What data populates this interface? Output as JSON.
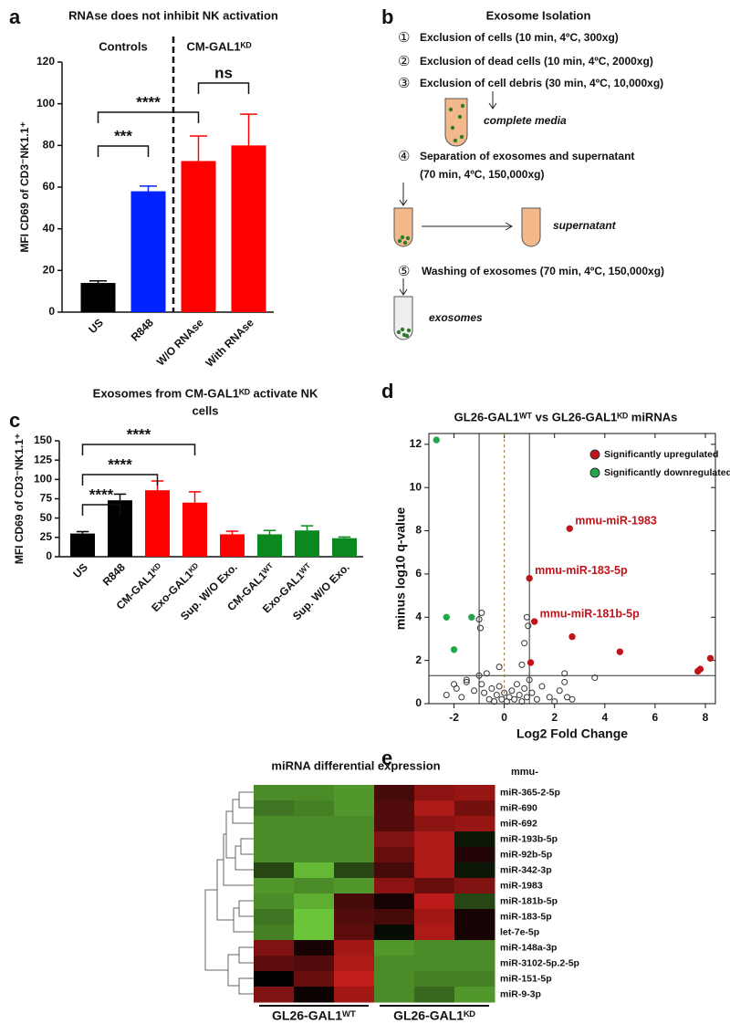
{
  "panels": [
    "a",
    "b",
    "c",
    "d",
    "e"
  ],
  "chart_data": [
    {
      "type": "bar",
      "title": "RNAse does not inhibit NK activation",
      "ylabel": "MFI CD69 of CD3⁻NK1.1⁺",
      "categories": [
        "US",
        "R848",
        "W/O RNAse",
        "With RNAse"
      ],
      "values": [
        14,
        58,
        72.5,
        80
      ],
      "errors": [
        1,
        2.5,
        12,
        15
      ],
      "colors": [
        "#000000",
        "#0022ff",
        "#ff0000",
        "#ff0000"
      ],
      "ylim": [
        0,
        120
      ],
      "yticks": [
        0,
        20,
        40,
        60,
        80,
        100,
        120
      ],
      "group_labels": [
        "Controls",
        "CM-GAL1ᴷᴰ"
      ],
      "annotations": [
        "****",
        "***",
        "ns"
      ]
    },
    {
      "type": "bar",
      "title": [
        "Exosomes from CM-GAL1ᴷᴰ activate NK",
        "cells"
      ],
      "ylabel": "MFI CD69 of CD3⁻NK1.1⁺",
      "categories": [
        "US",
        "R848",
        "CM-GAL1ᴷᴰ",
        "Exo-GAL1ᴷᴰ",
        "Sup. W/O Exo.",
        "CM-GAL1ᵂᵀ",
        "Exo-GAL1ᵂᵀ",
        "Sup. W/O Exo."
      ],
      "values": [
        30,
        73,
        86,
        70,
        29,
        29,
        34,
        24
      ],
      "errors": [
        2.5,
        8,
        12,
        14,
        4,
        5,
        6,
        1.5
      ],
      "colors": [
        "#000000",
        "#000000",
        "#ff0000",
        "#ff0000",
        "#ff0000",
        "#0a8a1e",
        "#0a8a1e",
        "#0a8a1e"
      ],
      "ylim": [
        0,
        150
      ],
      "yticks": [
        0,
        25,
        50,
        75,
        100,
        125,
        150
      ],
      "annotations": [
        "****",
        "****",
        "****"
      ]
    },
    {
      "type": "scatter",
      "title": "GL26-GAL1ᵂᵀ vs GL26-GAL1ᴷᴰ miRNAs",
      "xlabel": "Log2 Fold Change",
      "ylabel": "minus log10 q-value",
      "xlim": [
        -3,
        8.4
      ],
      "xticks": [
        -2,
        0,
        2,
        4,
        6,
        8
      ],
      "ylim": [
        0,
        12.5
      ],
      "yticks": [
        0,
        2,
        4,
        6,
        8,
        10,
        12
      ],
      "reference_lines": {
        "x": [
          -1,
          1
        ],
        "y": [
          1.3
        ]
      },
      "center_line": 0,
      "legend": "top-right",
      "series": [
        {
          "name": "Significantly upregulated",
          "color": "#c0141a",
          "x": [
            2.6,
            1.0,
            1.2,
            1.05,
            2.7,
            4.6,
            7.7,
            7.8,
            8.2
          ],
          "y": [
            8.1,
            5.8,
            3.8,
            1.9,
            3.1,
            2.4,
            1.5,
            1.6,
            2.1
          ]
        },
        {
          "name": "Significantly downregulated",
          "color": "#22a84a",
          "x": [
            -2.7,
            -1.3,
            -2.3,
            -2.0
          ],
          "y": [
            12.2,
            4.0,
            4.0,
            2.5
          ]
        },
        {
          "color": "#333333",
          "x": [
            -2.3,
            -2.0,
            -1.9,
            -1.7,
            -1.5,
            -1.2,
            -1.0,
            -0.9,
            -0.8,
            -0.7,
            -0.6,
            -0.5,
            -0.4,
            -0.3,
            -0.2,
            -0.1,
            0.0,
            0.1,
            0.2,
            0.3,
            0.4,
            0.5,
            0.6,
            0.7,
            0.8,
            0.9,
            1.0,
            1.1,
            1.3,
            1.5,
            1.8,
            2.0,
            2.2,
            2.4,
            2.5,
            2.7,
            3.6,
            -1.0,
            -0.9,
            -0.95,
            0.9,
            0.8,
            -1.5,
            0.95,
            2.4,
            -0.2,
            0.7
          ],
          "y": [
            0.4,
            0.9,
            0.7,
            0.3,
            1.1,
            0.6,
            1.3,
            0.9,
            0.5,
            1.4,
            0.2,
            0.7,
            0.1,
            0.4,
            0.8,
            0.2,
            0.5,
            0.1,
            0.3,
            0.6,
            0.2,
            0.9,
            0.4,
            0.1,
            0.7,
            0.3,
            1.1,
            0.5,
            0.2,
            0.8,
            0.3,
            0.1,
            0.6,
            1.0,
            0.3,
            0.2,
            1.2,
            3.9,
            4.2,
            3.5,
            4.0,
            2.8,
            1.0,
            3.6,
            1.4,
            1.7,
            1.8
          ]
        }
      ],
      "point_labels": [
        "mmu-miR-1983",
        "mmu-miR-183-5p",
        "mmu-miR-181b-5p"
      ]
    },
    {
      "type": "heatmap",
      "title": "miRNA differential expression",
      "row_header": "mmu-",
      "rows": [
        "miR-365-2-5p",
        "miR-690",
        "miR-692",
        "miR-193b-5p",
        "miR-92b-5p",
        "miR-342-3p",
        "miR-1983",
        "miR-181b-5p",
        "miR-183-5p",
        "let-7e-5p",
        "miR-148a-3p",
        "miR-3102-5p.2-5p",
        "miR-151-5p",
        "miR-9-3p"
      ],
      "groups": [
        "GL26-GAL1ᵂᵀ",
        "GL26-GAL1ᴷᴰ"
      ],
      "zlim": [
        -1,
        1
      ],
      "colors": {
        "low": "#7de843",
        "mid": "#000000",
        "high": "#e8221e"
      },
      "values": [
        [
          -0.6,
          -0.6,
          -0.65,
          0.3,
          0.6,
          0.65
        ],
        [
          -0.5,
          -0.55,
          -0.65,
          0.35,
          0.75,
          0.5
        ],
        [
          -0.6,
          -0.6,
          -0.6,
          0.35,
          0.6,
          0.65
        ],
        [
          -0.6,
          -0.6,
          -0.6,
          0.55,
          0.75,
          -0.1
        ],
        [
          -0.6,
          -0.6,
          -0.6,
          0.45,
          0.75,
          0.15
        ],
        [
          -0.3,
          -0.8,
          -0.3,
          0.3,
          0.75,
          -0.1
        ],
        [
          -0.65,
          -0.6,
          -0.65,
          0.6,
          0.45,
          0.55
        ],
        [
          -0.6,
          -0.75,
          0.3,
          0.1,
          0.8,
          -0.3
        ],
        [
          -0.5,
          -0.85,
          0.35,
          0.3,
          0.7,
          0.1
        ],
        [
          -0.55,
          -0.85,
          0.4,
          -0.05,
          0.75,
          0.1
        ],
        [
          0.55,
          0.1,
          0.7,
          -0.65,
          -0.6,
          -0.6
        ],
        [
          0.4,
          0.35,
          0.75,
          -0.6,
          -0.6,
          -0.6
        ],
        [
          0.0,
          0.45,
          0.85,
          -0.6,
          -0.55,
          -0.55
        ],
        [
          0.55,
          0.05,
          0.7,
          -0.6,
          -0.45,
          -0.65
        ]
      ]
    }
  ],
  "diagram": {
    "title": "Exosome Isolation",
    "steps": [
      {
        "number": "①",
        "lines": [
          "Exclusion of cells (10 min, 4ºC, 300xg)"
        ]
      },
      {
        "number": "②",
        "lines": [
          "Exclusion of dead cells (10 min, 4ºC, 2000xg)"
        ]
      },
      {
        "number": "③",
        "lines": [
          "Exclusion of cell debris (30 min, 4ºC, 10,000xg)"
        ]
      },
      {
        "number": "④",
        "lines": [
          "Separation of exosomes and supernatant",
          "(70 min, 4ºC, 150,000xg)"
        ]
      },
      {
        "number": "⑤",
        "lines": [
          "Washing of exosomes (70 min, 4ºC, 150,000xg)"
        ]
      }
    ],
    "labels": [
      "complete media",
      "supernatant",
      "exosomes"
    ]
  }
}
